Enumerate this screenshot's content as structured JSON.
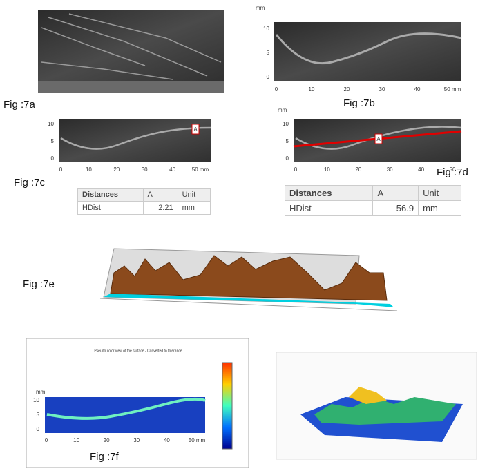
{
  "figures": {
    "a": {
      "label": "Fig :7a"
    },
    "b": {
      "label": "Fig :7b",
      "unit": "mm",
      "xticks": [
        0,
        10,
        20,
        30,
        40,
        "50 mm"
      ],
      "yticks": [
        10,
        5,
        0
      ]
    },
    "c": {
      "label": "Fig :7c",
      "marker": "A",
      "xticks": [
        0,
        10,
        20,
        30,
        40,
        "50 mm"
      ],
      "yticks": [
        10,
        5,
        0
      ]
    },
    "d": {
      "label": "Fig :7d",
      "unit": "mm",
      "marker": "A",
      "xticks": [
        0,
        10,
        20,
        30,
        40,
        50
      ],
      "yticks": [
        10,
        5,
        0
      ]
    },
    "e": {
      "label": "Fig :7e"
    },
    "f": {
      "label": "Fig :7f",
      "title": "Pseudo color view of the surface - Converted to tolerance",
      "unit": "mm",
      "xticks": [
        0,
        10,
        20,
        30,
        40,
        "50 mm"
      ],
      "yticks": [
        10,
        5,
        0
      ]
    }
  },
  "tables": [
    {
      "header": [
        "Distances",
        "A",
        "Unit"
      ],
      "row": [
        "HDist",
        2.21,
        "mm"
      ]
    },
    {
      "header": [
        "Distances",
        "A",
        "Unit"
      ],
      "row": [
        "HDist",
        56.9,
        "mm"
      ]
    }
  ]
}
